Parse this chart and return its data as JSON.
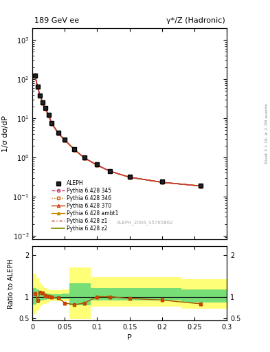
{
  "title_left": "189 GeV ee",
  "title_right": "γ*/Z (Hadronic)",
  "right_label": "Rivet 3.1.10, ≥ 2.7M events",
  "watermark": "ALEPH_2004_S5765862",
  "xlabel": "P",
  "ylabel_main": "1/σ dσ/dP",
  "ylabel_ratio": "Ratio to ALEPH",
  "x_data": [
    0.004,
    0.008,
    0.012,
    0.016,
    0.02,
    0.025,
    0.03,
    0.04,
    0.05,
    0.065,
    0.08,
    0.1,
    0.12,
    0.15,
    0.2,
    0.26
  ],
  "aleph_y": [
    120.0,
    65.0,
    38.0,
    25.0,
    18.0,
    12.0,
    7.5,
    4.2,
    2.8,
    1.6,
    1.0,
    0.65,
    0.45,
    0.32,
    0.24,
    0.19
  ],
  "mc_y": [
    125.0,
    62.0,
    37.5,
    24.5,
    17.5,
    11.8,
    7.3,
    4.1,
    2.75,
    1.57,
    0.97,
    0.63,
    0.44,
    0.31,
    0.23,
    0.185
  ],
  "ratio_x": [
    0.004,
    0.008,
    0.012,
    0.016,
    0.02,
    0.025,
    0.03,
    0.04,
    0.05,
    0.065,
    0.08,
    0.1,
    0.12,
    0.15,
    0.2,
    0.26
  ],
  "ratio_y": [
    1.08,
    0.92,
    1.12,
    1.1,
    1.04,
    1.02,
    1.0,
    0.98,
    0.86,
    0.82,
    0.86,
    1.01,
    1.01,
    0.97,
    0.93,
    0.84
  ],
  "xlim": [
    0.0,
    0.3
  ],
  "ylim_main": [
    0.008,
    2000.0
  ],
  "ylim_ratio": [
    0.45,
    2.2
  ],
  "bg_color": "#ffffff",
  "mc_color": "#aa5500",
  "aleph_color": "#000000",
  "bin_edges": [
    0.0,
    0.006,
    0.01,
    0.014,
    0.018,
    0.0225,
    0.027,
    0.035,
    0.045,
    0.057,
    0.072,
    0.09,
    0.11,
    0.135,
    0.175,
    0.23,
    0.3
  ],
  "y_outer_low": [
    0.6,
    0.68,
    0.78,
    0.82,
    0.84,
    0.88,
    0.9,
    0.9,
    0.9,
    0.48,
    0.48,
    0.78,
    0.78,
    0.78,
    0.78,
    0.72
  ],
  "y_outer_high": [
    1.55,
    1.45,
    1.35,
    1.28,
    1.22,
    1.18,
    1.16,
    1.16,
    1.18,
    1.7,
    1.7,
    1.48,
    1.48,
    1.48,
    1.48,
    1.42
  ],
  "y_inner_low": [
    0.82,
    0.86,
    0.9,
    0.92,
    0.94,
    0.95,
    0.96,
    0.96,
    0.95,
    0.8,
    0.8,
    0.92,
    0.92,
    0.92,
    0.92,
    0.88
  ],
  "y_inner_high": [
    1.22,
    1.18,
    1.14,
    1.12,
    1.1,
    1.08,
    1.07,
    1.07,
    1.08,
    1.32,
    1.32,
    1.22,
    1.22,
    1.22,
    1.22,
    1.18
  ],
  "legend_entries": [
    "ALEPH",
    "Pythia 6.428 345",
    "Pythia 6.428 346",
    "Pythia 6.428 370",
    "Pythia 6.428 ambt1",
    "Pythia 6.428 z1",
    "Pythia 6.428 z2"
  ]
}
